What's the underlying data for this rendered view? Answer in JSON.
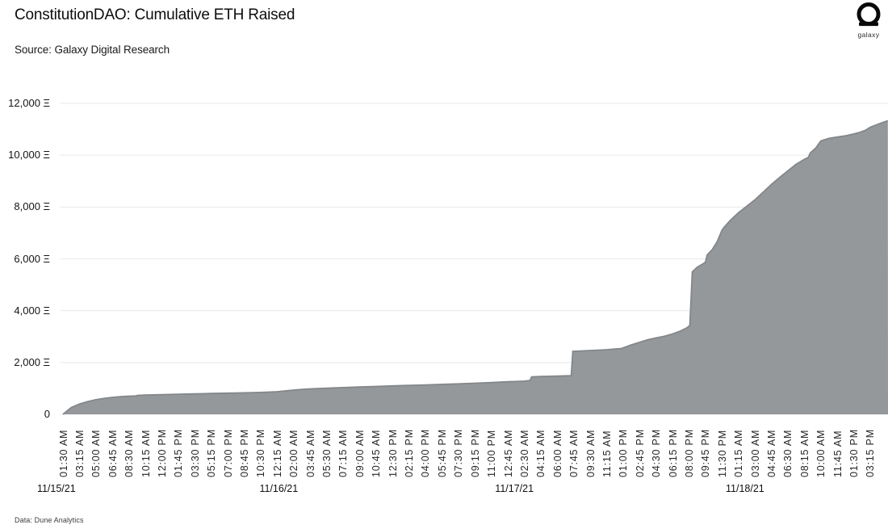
{
  "header": {
    "title": "ConstitutionDAO: Cumulative ETH Raised",
    "source": "Source: Galaxy Digital Research",
    "logo_wordmark": "galaxy"
  },
  "footer": {
    "credit": "Data: Dune Analytics"
  },
  "chart_data": {
    "type": "area",
    "title": "ConstitutionDAO: Cumulative ETH Raised",
    "unit": "ETH (Ξ)",
    "grid": true,
    "legend": false,
    "area_color": "#95989b",
    "edge_color": "#84878a",
    "ylim": [
      0,
      12000
    ],
    "y_ticks": [
      {
        "value": 12000,
        "label": "12,000 Ξ"
      },
      {
        "value": 10000,
        "label": "10,000 Ξ"
      },
      {
        "value": 8000,
        "label": "8,000 Ξ"
      },
      {
        "value": 6000,
        "label": "6,000 Ξ"
      },
      {
        "value": 4000,
        "label": "4,000 Ξ"
      },
      {
        "value": 2000,
        "label": "2,000 Ξ"
      },
      {
        "value": 0,
        "label": "0"
      }
    ],
    "x_time_ticks": [
      "01:30 AM",
      "03:15 AM",
      "05:00 AM",
      "06:45 AM",
      "08:30 AM",
      "10:15 AM",
      "12:00 PM",
      "01:45 PM",
      "03:30 PM",
      "05:15 PM",
      "07:00 PM",
      "08:45 PM",
      "10:30 PM",
      "12:15 AM",
      "02:00 AM",
      "03:45 AM",
      "05:30 AM",
      "07:15 AM",
      "09:00 AM",
      "10:45 AM",
      "12:30 PM",
      "02:15 PM",
      "04:00 PM",
      "05:45 PM",
      "07:30 PM",
      "09:15 PM",
      "11:00 PM",
      "12:45 AM",
      "02:30 AM",
      "04:15 AM",
      "06:00 AM",
      "07:45 AM",
      "09:30 AM",
      "11:15 AM",
      "01:00 PM",
      "02:45 PM",
      "04:30 PM",
      "06:15 PM",
      "08:00 PM",
      "09:45 PM",
      "11:30 PM",
      "01:15 AM",
      "03:00 AM",
      "04:45 AM",
      "06:30 AM",
      "08:15 AM",
      "10:00 AM",
      "11:45 AM",
      "01:30 PM",
      "03:15 PM"
    ],
    "x_date_labels": [
      {
        "label": "11/15/21",
        "tick_pos": -0.4
      },
      {
        "label": "11/16/21",
        "tick_pos": 13.1
      },
      {
        "label": "11/17/21",
        "tick_pos": 27.4
      },
      {
        "label": "11/18/21",
        "tick_pos": 41.4
      }
    ],
    "points": [
      [
        0,
        0
      ],
      [
        0.15,
        80
      ],
      [
        0.5,
        260
      ],
      [
        1,
        400
      ],
      [
        1.5,
        490
      ],
      [
        2,
        565
      ],
      [
        2.5,
        615
      ],
      [
        3,
        655
      ],
      [
        3.5,
        680
      ],
      [
        4,
        700
      ],
      [
        4.4,
        708
      ],
      [
        4.55,
        732
      ],
      [
        5,
        742
      ],
      [
        6,
        760
      ],
      [
        7,
        776
      ],
      [
        8,
        790
      ],
      [
        9,
        805
      ],
      [
        10,
        818
      ],
      [
        11,
        830
      ],
      [
        12,
        845
      ],
      [
        13,
        872
      ],
      [
        13.5,
        905
      ],
      [
        14,
        935
      ],
      [
        14.5,
        962
      ],
      [
        15,
        982
      ],
      [
        16,
        1008
      ],
      [
        17,
        1032
      ],
      [
        18,
        1056
      ],
      [
        19,
        1076
      ],
      [
        20,
        1096
      ],
      [
        21,
        1116
      ],
      [
        22,
        1136
      ],
      [
        23,
        1156
      ],
      [
        24,
        1176
      ],
      [
        25,
        1200
      ],
      [
        26,
        1228
      ],
      [
        27,
        1255
      ],
      [
        28,
        1282
      ],
      [
        28.35,
        1305
      ],
      [
        28.45,
        1445
      ],
      [
        29,
        1458
      ],
      [
        30,
        1475
      ],
      [
        30.85,
        1490
      ],
      [
        30.95,
        2430
      ],
      [
        31.5,
        2448
      ],
      [
        32,
        2462
      ],
      [
        33,
        2492
      ],
      [
        33.9,
        2540
      ],
      [
        34.5,
        2680
      ],
      [
        35,
        2780
      ],
      [
        35.5,
        2880
      ],
      [
        36,
        2950
      ],
      [
        36.5,
        3010
      ],
      [
        37,
        3100
      ],
      [
        37.5,
        3220
      ],
      [
        37.9,
        3350
      ],
      [
        38.05,
        3430
      ],
      [
        38.2,
        5500
      ],
      [
        38.5,
        5680
      ],
      [
        38.9,
        5830
      ],
      [
        39,
        5880
      ],
      [
        39.1,
        6150
      ],
      [
        39.4,
        6350
      ],
      [
        39.7,
        6650
      ],
      [
        39.9,
        6950
      ],
      [
        40,
        7100
      ],
      [
        40.15,
        7230
      ],
      [
        40.5,
        7480
      ],
      [
        41,
        7780
      ],
      [
        41.5,
        8030
      ],
      [
        42,
        8280
      ],
      [
        42.5,
        8570
      ],
      [
        43,
        8870
      ],
      [
        43.5,
        9140
      ],
      [
        44,
        9400
      ],
      [
        44.5,
        9650
      ],
      [
        45,
        9840
      ],
      [
        45.25,
        9920
      ],
      [
        45.35,
        10080
      ],
      [
        45.7,
        10280
      ],
      [
        46,
        10550
      ],
      [
        46.5,
        10650
      ],
      [
        47,
        10700
      ],
      [
        47.5,
        10750
      ],
      [
        48,
        10820
      ],
      [
        48.3,
        10870
      ],
      [
        48.7,
        10960
      ],
      [
        49,
        11080
      ],
      [
        49.4,
        11180
      ],
      [
        49.7,
        11250
      ],
      [
        50.07,
        11330
      ]
    ]
  }
}
